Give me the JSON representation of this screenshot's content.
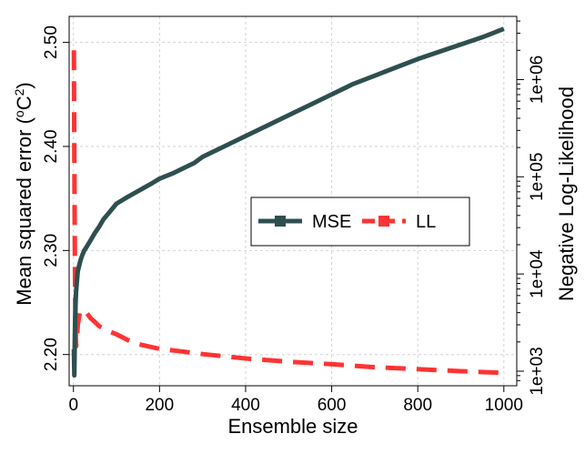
{
  "chart_data": {
    "type": "line",
    "xlabel": "Ensemble size",
    "ylabel_left": "Mean squared error (",
    "ylabel_left_unit": "o",
    "ylabel_left_unit_tail": "C",
    "ylabel_left_sup": "2",
    "ylabel_left_close": ")",
    "ylabel_right": "Negative Log-Likelihood",
    "xlim": [
      -10,
      1030
    ],
    "ylim_left": [
      2.17,
      2.525
    ],
    "ylim_right_log10": [
      2.85,
      6.65
    ],
    "right_scale": "log",
    "grid": true,
    "legend_position": "center-right",
    "x_ticks": [
      0,
      200,
      400,
      600,
      800,
      1000
    ],
    "y_left_ticks": [
      2.2,
      2.3,
      2.4,
      2.5
    ],
    "y_left_tick_labels": [
      "2.20",
      "2.30",
      "2.40",
      "2.50"
    ],
    "y_right_major_ticks": [
      3,
      4,
      5,
      6
    ],
    "y_right_tick_labels": [
      "1e+03",
      "1e+04",
      "1e+05",
      "1e+06"
    ],
    "series": [
      {
        "name": "MSE",
        "axis": "left",
        "color": "#2f4f4f",
        "style": "solid",
        "x": [
          1,
          2,
          3,
          4,
          5,
          6,
          8,
          10,
          13,
          16,
          20,
          25,
          30,
          40,
          50,
          60,
          70,
          80,
          90,
          100,
          120,
          150,
          180,
          200,
          230,
          250,
          280,
          300,
          350,
          400,
          450,
          500,
          550,
          600,
          650,
          700,
          750,
          800,
          850,
          900,
          950,
          1000
        ],
        "y": [
          2.205,
          2.18,
          2.215,
          2.235,
          2.25,
          2.26,
          2.27,
          2.28,
          2.285,
          2.29,
          2.295,
          2.3,
          2.303,
          2.31,
          2.317,
          2.323,
          2.33,
          2.335,
          2.34,
          2.345,
          2.35,
          2.357,
          2.364,
          2.369,
          2.374,
          2.378,
          2.384,
          2.39,
          2.4,
          2.41,
          2.42,
          2.43,
          2.44,
          2.45,
          2.46,
          2.468,
          2.476,
          2.484,
          2.491,
          2.498,
          2.505,
          2.513
        ]
      },
      {
        "name": "LL",
        "axis": "right",
        "color": "#ff3333",
        "style": "dashed",
        "x": [
          1,
          2,
          3,
          4,
          5,
          6,
          8,
          10,
          15,
          20,
          30,
          40,
          50,
          60,
          80,
          100,
          125,
          150,
          200,
          250,
          300,
          400,
          500,
          600,
          700,
          800,
          900,
          1000
        ],
        "y": [
          2000000,
          150000,
          20000,
          6000,
          2800,
          1800,
          2000,
          3000,
          4000,
          4300,
          4000,
          3500,
          3200,
          2900,
          2600,
          2400,
          2100,
          1900,
          1700,
          1600,
          1500,
          1350,
          1250,
          1180,
          1100,
          1050,
          1000,
          960
        ]
      }
    ]
  }
}
